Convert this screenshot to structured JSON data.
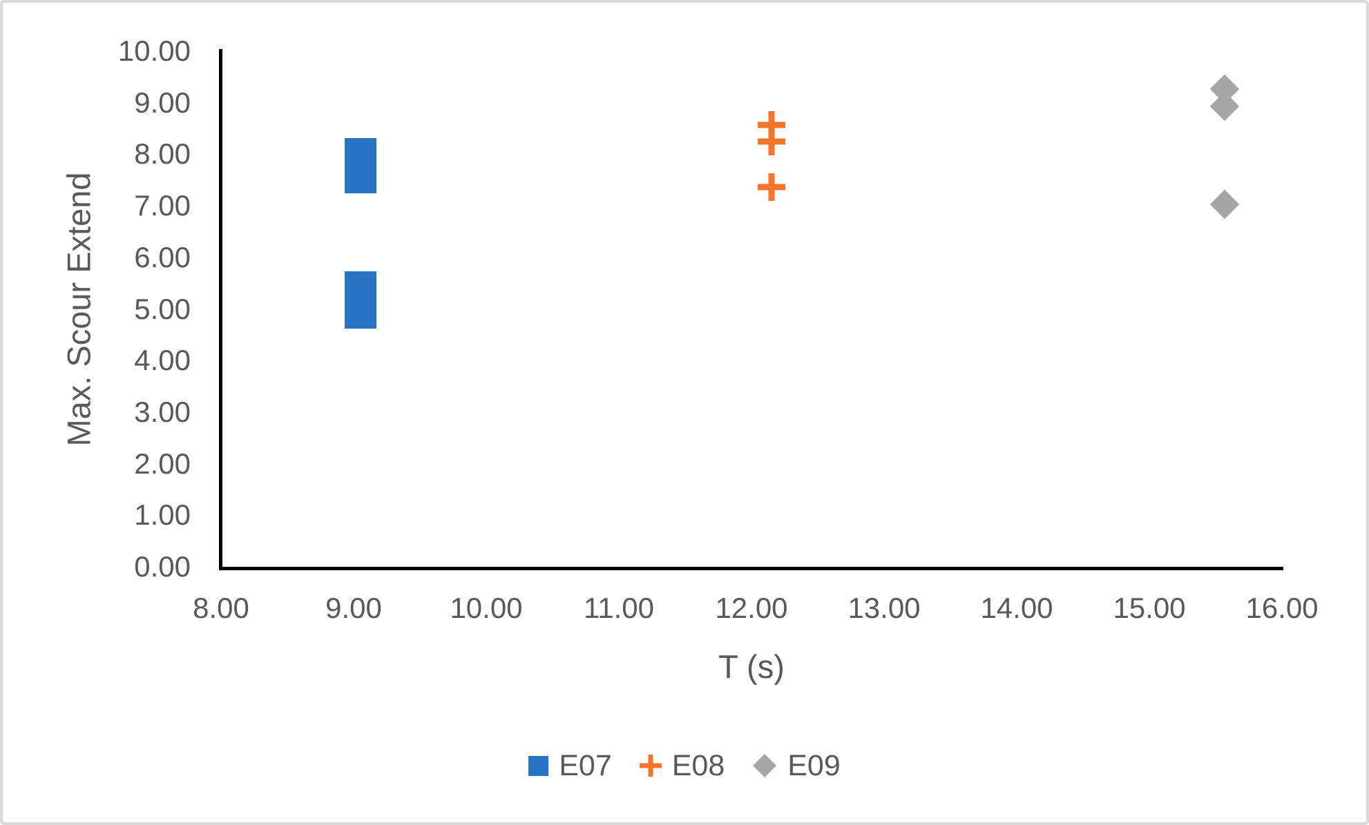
{
  "figure": {
    "background": "#ffffff",
    "frame_border_color": "#d9d9d9",
    "axis_line_color": "#000000",
    "tick_text_color": "#595959",
    "axis_title_color": "#595959"
  },
  "chart_data": {
    "type": "scatter",
    "title": "",
    "xlabel": "T (s)",
    "ylabel": "Max. Scour Extend",
    "xlim": [
      8.0,
      16.0
    ],
    "ylim": [
      0.0,
      10.0
    ],
    "grid": false,
    "legend_position": "bottom-center",
    "x_ticks": [
      "8.00",
      "9.00",
      "10.00",
      "11.00",
      "12.00",
      "13.00",
      "14.00",
      "15.00",
      "16.00"
    ],
    "y_ticks": [
      "0.00",
      "1.00",
      "2.00",
      "3.00",
      "4.00",
      "5.00",
      "6.00",
      "7.00",
      "8.00",
      "9.00",
      "10.00"
    ],
    "series": [
      {
        "name": "E07",
        "marker": "square",
        "color": "#2873C3",
        "points": [
          [
            9.05,
            8.0
          ],
          [
            9.05,
            7.55
          ],
          [
            9.05,
            5.42
          ],
          [
            9.05,
            4.92
          ]
        ]
      },
      {
        "name": "E08",
        "marker": "plus",
        "color": "#F4752B",
        "points": [
          [
            12.15,
            8.57
          ],
          [
            12.15,
            8.25
          ],
          [
            12.15,
            7.36
          ]
        ]
      },
      {
        "name": "E09",
        "marker": "diamond",
        "color": "#A6A6A6",
        "points": [
          [
            15.57,
            9.27
          ],
          [
            15.57,
            8.93
          ],
          [
            15.57,
            7.03
          ]
        ]
      }
    ]
  }
}
